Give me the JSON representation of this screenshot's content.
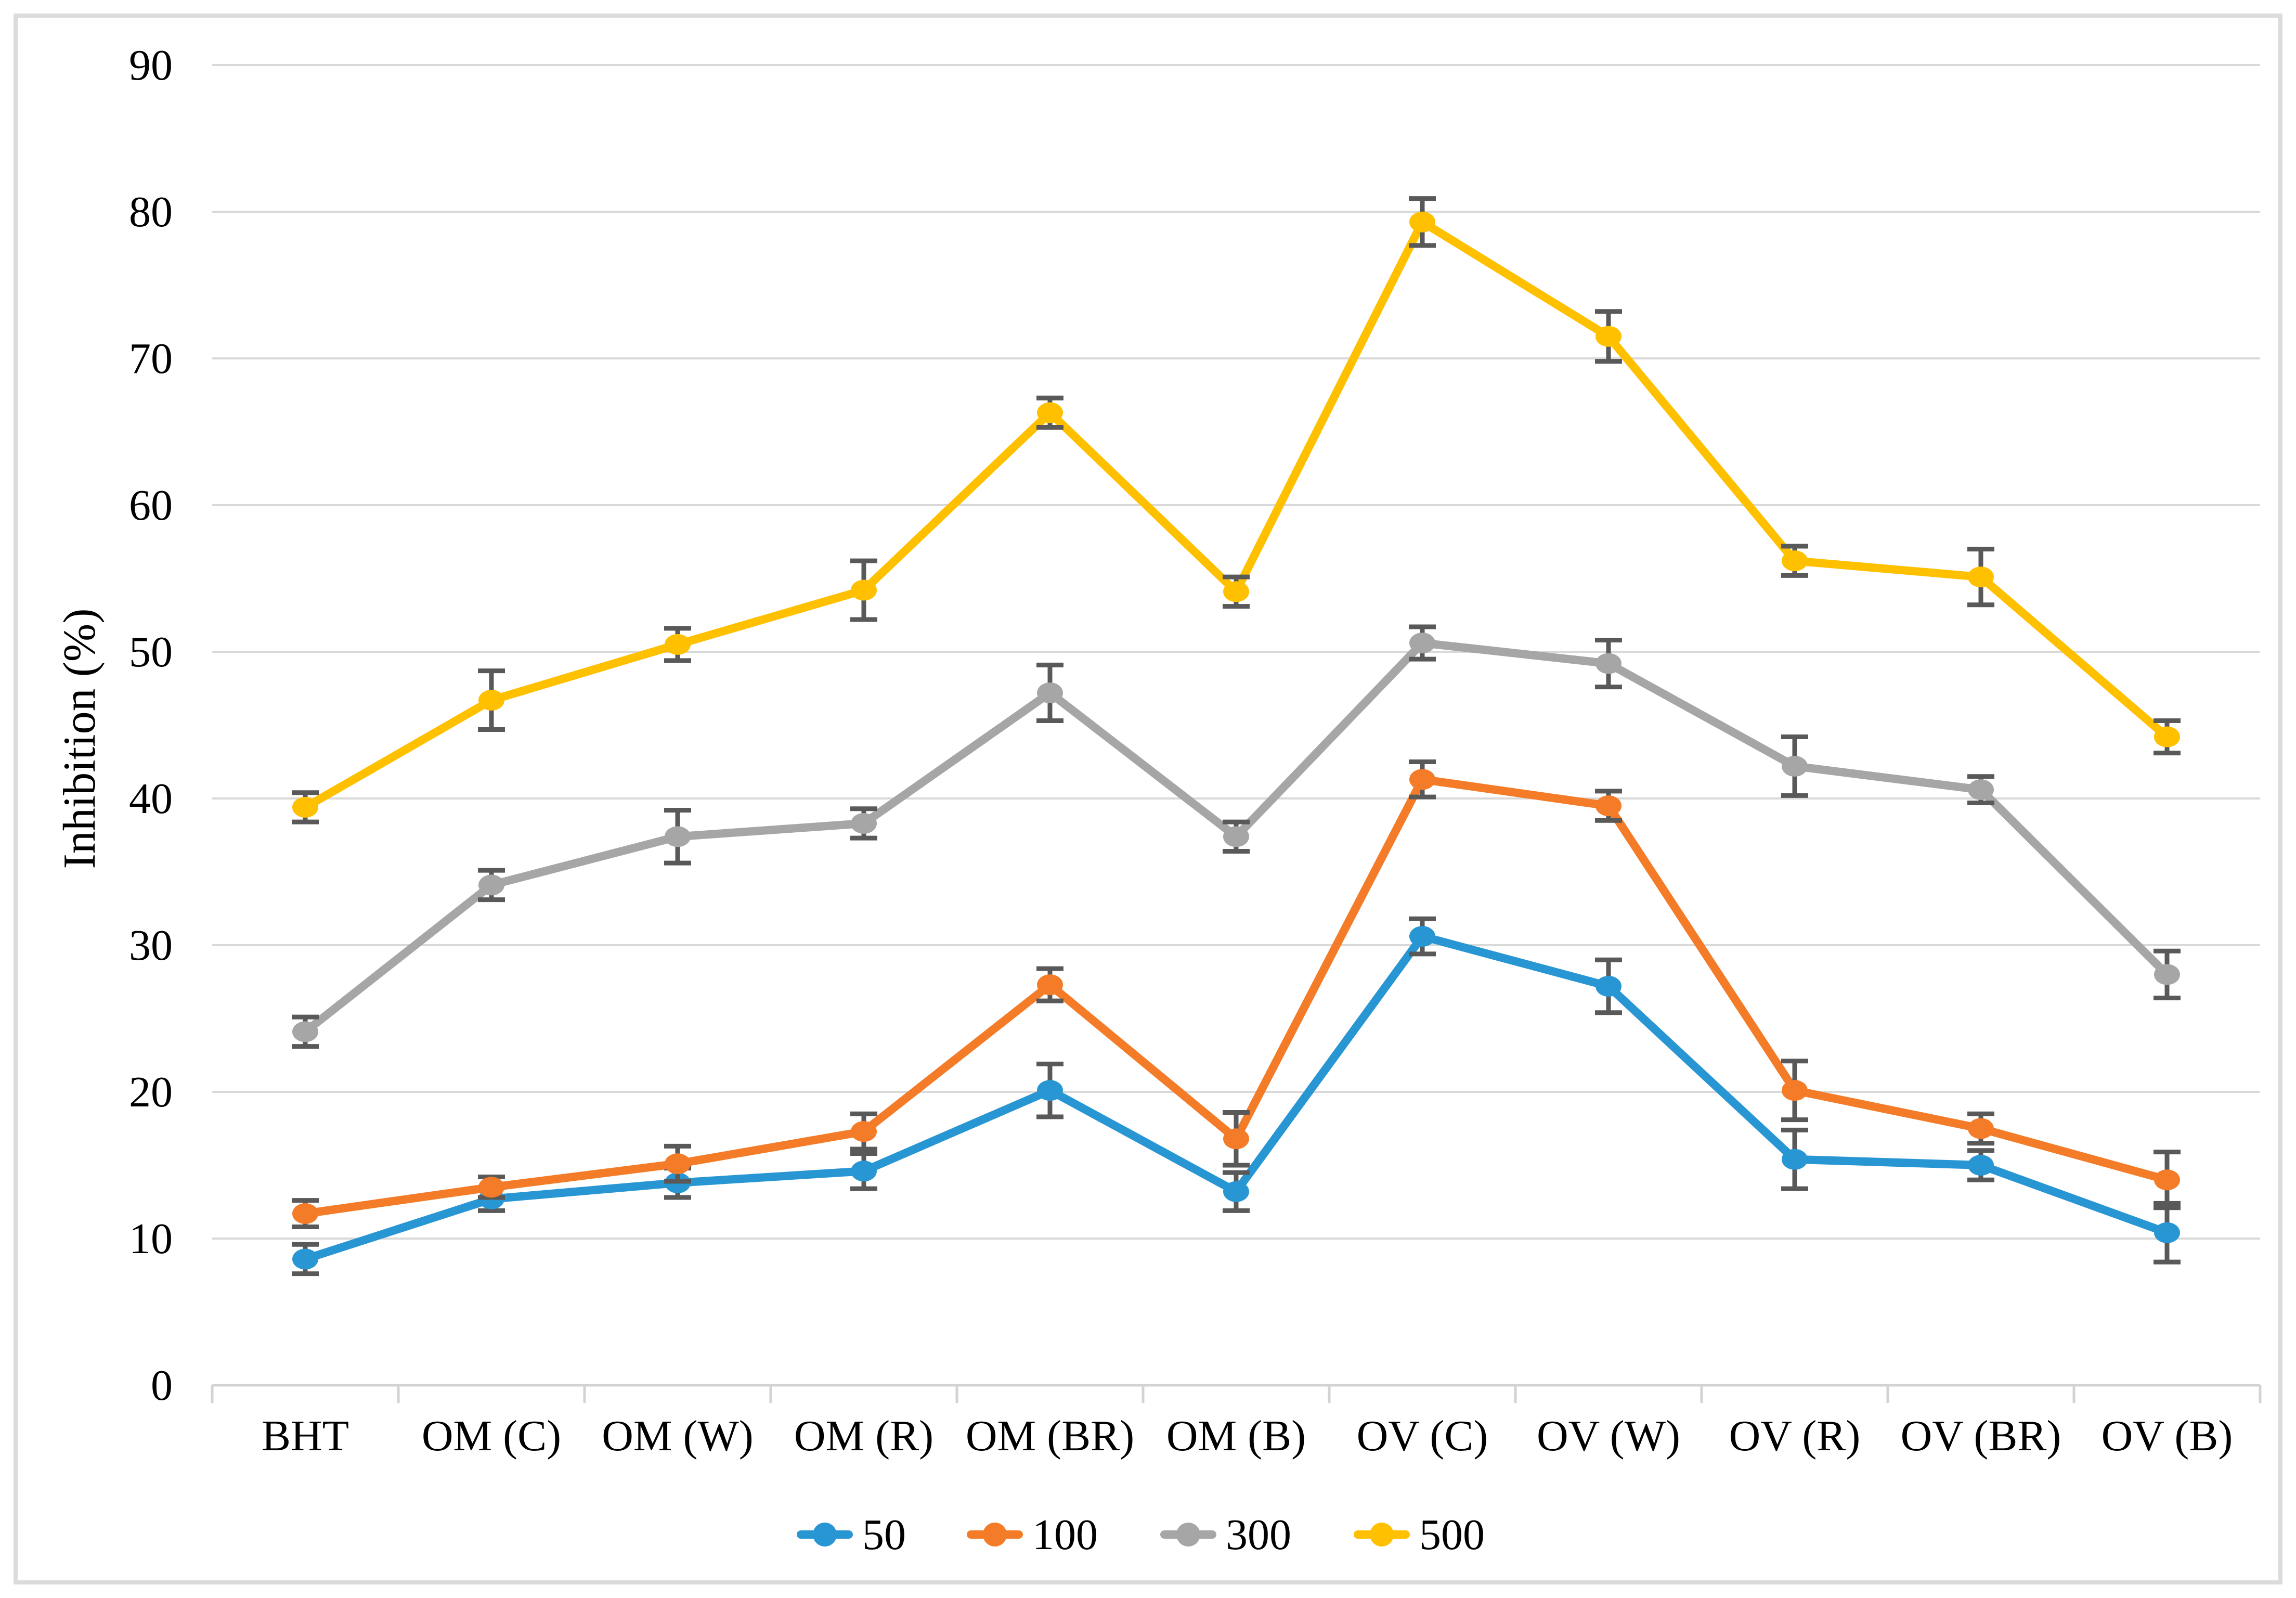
{
  "chart_data": {
    "type": "line",
    "title": "",
    "xlabel": "",
    "ylabel": "Inhibition (%)",
    "ylim": [
      0,
      90
    ],
    "ytick_step": 10,
    "ytick_labels": [
      "0",
      "10",
      "20",
      "30",
      "40",
      "50",
      "60",
      "70",
      "80",
      "90"
    ],
    "grid": true,
    "legend_position": "bottom",
    "categories": [
      "BHT",
      "OM (C)",
      "OM (W)",
      "OM (R)",
      "OM (BR)",
      "OM (B)",
      "OV (C)",
      "OV (W)",
      "OV (R)",
      "OV (BR)",
      "OV (B)"
    ],
    "series": [
      {
        "name": "50",
        "color": "#2996D4",
        "values": [
          8.6,
          12.7,
          13.8,
          14.6,
          20.1,
          13.2,
          30.6,
          27.2,
          15.4,
          15.0,
          10.4
        ],
        "errors": [
          1.0,
          0.8,
          1.0,
          1.2,
          1.8,
          1.3,
          1.2,
          1.8,
          2.0,
          1.0,
          2.0
        ]
      },
      {
        "name": "100",
        "color": "#F47C28",
        "values": [
          11.7,
          13.5,
          15.1,
          17.3,
          27.3,
          16.8,
          41.3,
          39.5,
          20.1,
          17.5,
          14.0
        ],
        "errors": [
          0.9,
          0.7,
          1.2,
          1.2,
          1.1,
          1.8,
          1.2,
          1.0,
          2.0,
          1.0,
          1.9
        ]
      },
      {
        "name": "300",
        "color": "#A6A6A6",
        "values": [
          24.1,
          34.1,
          37.4,
          38.3,
          47.2,
          37.4,
          50.6,
          49.2,
          42.2,
          40.6,
          28.0
        ],
        "errors": [
          1.0,
          1.0,
          1.8,
          1.0,
          1.9,
          1.0,
          1.1,
          1.6,
          2.0,
          0.9,
          1.6
        ]
      },
      {
        "name": "500",
        "color": "#FFC000",
        "values": [
          39.4,
          46.7,
          50.5,
          54.2,
          66.3,
          54.1,
          79.3,
          71.5,
          56.2,
          55.1,
          44.2
        ],
        "errors": [
          1.0,
          2.0,
          1.1,
          2.0,
          1.0,
          1.0,
          1.6,
          1.7,
          1.0,
          1.9,
          1.1
        ]
      }
    ],
    "colors": {
      "gridline": "#D9D9D9",
      "axis_line": "#D3D3D3",
      "error_bar": "#595959",
      "text": "#000000",
      "frame_border": "#DBDBDB"
    }
  }
}
